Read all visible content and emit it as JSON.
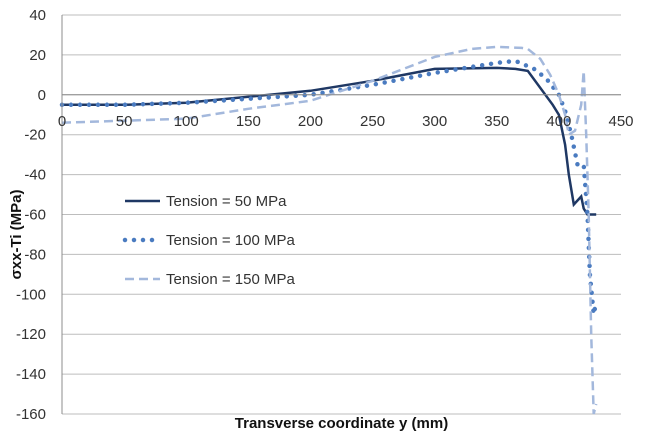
{
  "chart_data": {
    "type": "line",
    "title": "",
    "xlabel": "Transverse coordinate y (mm)",
    "ylabel": "σxx-Ti (MPa)",
    "xlim": [
      0,
      450
    ],
    "ylim": [
      -160,
      40
    ],
    "xticks": [
      0,
      50,
      100,
      150,
      200,
      250,
      300,
      350,
      400,
      450
    ],
    "yticks": [
      40,
      20,
      0,
      -20,
      -40,
      -60,
      -80,
      -100,
      -120,
      -140,
      -160
    ],
    "grid": "horizontal",
    "legend_position": "left-middle",
    "series": [
      {
        "name": "Tension = 50 MPa",
        "style": "solid",
        "color": "#1f3864",
        "points": [
          [
            0,
            -5
          ],
          [
            50,
            -5
          ],
          [
            100,
            -4
          ],
          [
            150,
            -1
          ],
          [
            200,
            2
          ],
          [
            250,
            7
          ],
          [
            300,
            13
          ],
          [
            350,
            13.5
          ],
          [
            365,
            13
          ],
          [
            375,
            12
          ],
          [
            395,
            -5
          ],
          [
            400,
            -10
          ],
          [
            405,
            -25
          ],
          [
            408,
            -40
          ],
          [
            412,
            -55
          ],
          [
            418,
            -51
          ],
          [
            420,
            -57
          ],
          [
            423,
            -60
          ],
          [
            430,
            -60
          ]
        ]
      },
      {
        "name": "Tension = 100 MPa",
        "style": "dotted",
        "color": "#4a7bc0",
        "points": [
          [
            0,
            -5
          ],
          [
            50,
            -5
          ],
          [
            100,
            -4
          ],
          [
            150,
            -2
          ],
          [
            200,
            0
          ],
          [
            250,
            5
          ],
          [
            300,
            11
          ],
          [
            330,
            14
          ],
          [
            350,
            16
          ],
          [
            365,
            17
          ],
          [
            380,
            13
          ],
          [
            390,
            8
          ],
          [
            400,
            0
          ],
          [
            405,
            -8
          ],
          [
            410,
            -20
          ],
          [
            415,
            -35
          ],
          [
            420,
            -35
          ],
          [
            423,
            -60
          ],
          [
            425,
            -90
          ],
          [
            428,
            -110
          ],
          [
            430,
            -104
          ]
        ]
      },
      {
        "name": "Tension = 150 MPa",
        "style": "dashed",
        "color": "#a3b8dc",
        "points": [
          [
            0,
            -14
          ],
          [
            100,
            -12
          ],
          [
            150,
            -7
          ],
          [
            200,
            -3
          ],
          [
            250,
            7
          ],
          [
            300,
            19
          ],
          [
            330,
            23
          ],
          [
            350,
            24
          ],
          [
            370,
            23.5
          ],
          [
            375,
            23
          ],
          [
            385,
            18
          ],
          [
            393,
            10
          ],
          [
            400,
            0
          ],
          [
            405,
            -10
          ],
          [
            408,
            -20
          ],
          [
            413,
            -18
          ],
          [
            418,
            -5
          ],
          [
            420,
            12
          ],
          [
            422,
            -20
          ],
          [
            424,
            -60
          ],
          [
            426,
            -120
          ],
          [
            428,
            -160
          ],
          [
            430,
            -155
          ]
        ]
      }
    ]
  }
}
